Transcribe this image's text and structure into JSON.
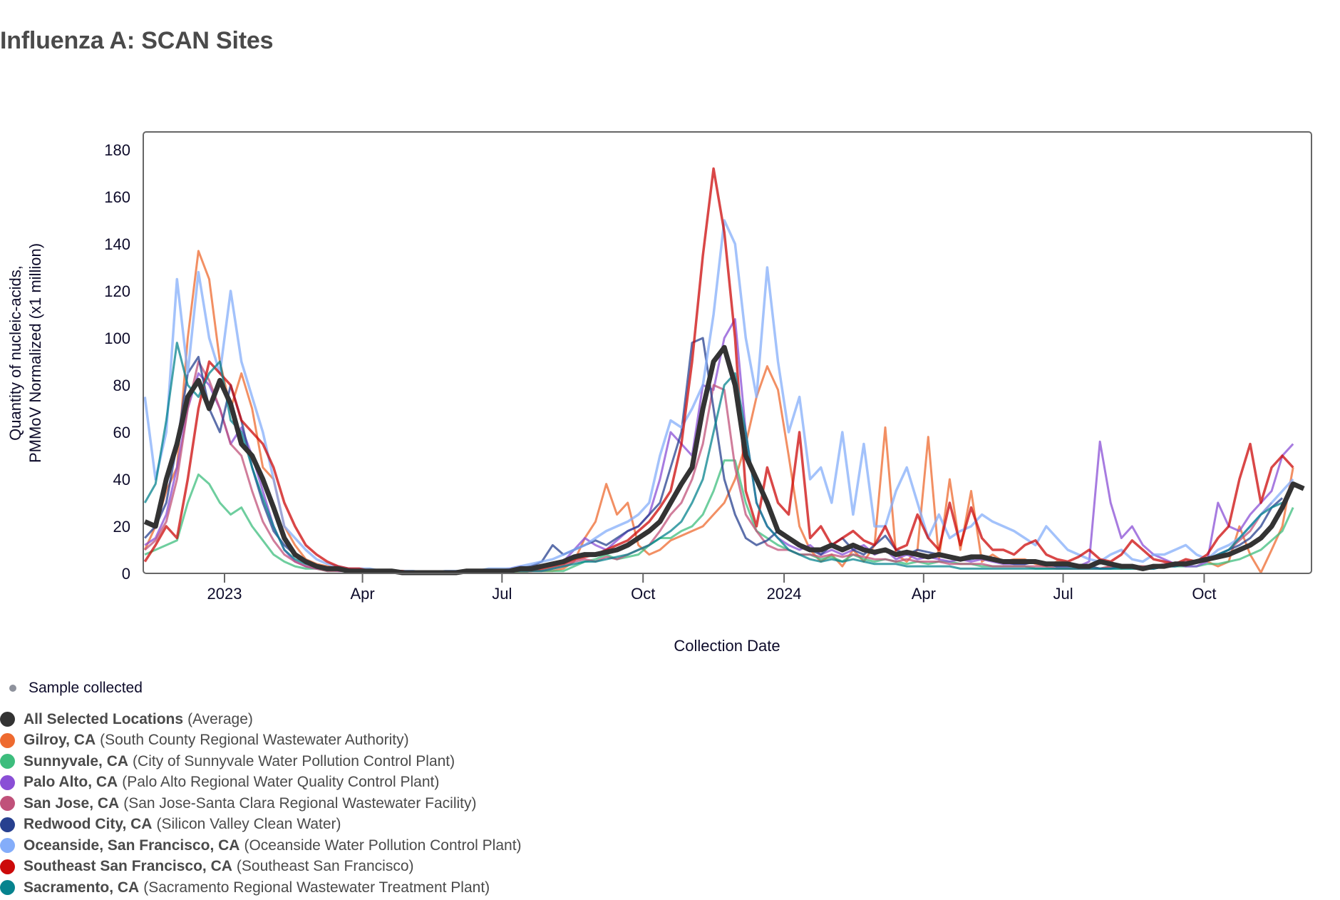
{
  "page": {
    "title": "Influenza A: SCAN Sites"
  },
  "legend": {
    "sample_label": "Sample collected",
    "sample_color": "#8e929c",
    "items": [
      {
        "name": "All Selected Locations",
        "detail": "(Average)",
        "color": "#333333"
      },
      {
        "name": "Gilroy, CA",
        "detail": "(South County Regional Wastewater Authority)",
        "color": "#ee6a2f"
      },
      {
        "name": "Sunnyvale, CA",
        "detail": "(City of Sunnyvale Water Pollution Control Plant)",
        "color": "#3dbd7d"
      },
      {
        "name": "Palo Alto, CA",
        "detail": "(Palo Alto Regional Water Quality Control Plant)",
        "color": "#8a4fd6"
      },
      {
        "name": "San Jose, CA",
        "detail": "(San Jose-Santa Clara Regional Wastewater Facility)",
        "color": "#c0517a"
      },
      {
        "name": "Redwood City, CA",
        "detail": "(Silicon Valley Clean Water)",
        "color": "#27408f"
      },
      {
        "name": "Oceanside, San Francisco, CA",
        "detail": "(Oceanside Water Pollution Control Plant)",
        "color": "#84adfa"
      },
      {
        "name": "Southeast San Francisco, CA",
        "detail": "(Southeast San Francisco)",
        "color": "#cc0a0a"
      },
      {
        "name": "Sacramento, CA",
        "detail": "(Sacramento Regional Wastewater Treatment Plant)",
        "color": "#06838e"
      }
    ]
  },
  "chart_data": {
    "type": "line",
    "title": "Influenza A: SCAN Sites",
    "xlabel": "Collection Date",
    "ylabel_lines": [
      "Quantity of nucleic-acids,",
      "PMMoV Normalized (x1 million)"
    ],
    "ylim": [
      0,
      190
    ],
    "yticks": [
      0,
      20,
      40,
      60,
      80,
      100,
      120,
      140,
      160,
      180
    ],
    "xlim": [
      "2022-11-09",
      "2024-12-10"
    ],
    "xticks": [
      {
        "date": "2023-01-01",
        "label": "2023"
      },
      {
        "date": "2023-04-01",
        "label": "Apr"
      },
      {
        "date": "2023-07-01",
        "label": "Jul"
      },
      {
        "date": "2023-10-01",
        "label": "Oct"
      },
      {
        "date": "2024-01-01",
        "label": "2024"
      },
      {
        "date": "2024-04-01",
        "label": "Apr"
      },
      {
        "date": "2024-07-01",
        "label": "Jul"
      },
      {
        "date": "2024-10-01",
        "label": "Oct"
      }
    ],
    "grid": false,
    "legend_position": "bottom-left",
    "x_start": "2022-11-10",
    "x_step_days": 7,
    "series": [
      {
        "name": "Gilroy, CA",
        "color": "#ee6a2f",
        "width": 3,
        "values": [
          10,
          20,
          35,
          45,
          100,
          137,
          125,
          90,
          70,
          85,
          70,
          45,
          40,
          20,
          12,
          6,
          4,
          3,
          2,
          2,
          1,
          1,
          1,
          1,
          1,
          0,
          0,
          0,
          0,
          0,
          0,
          0,
          0,
          0,
          0,
          1,
          1,
          1,
          1,
          2,
          5,
          15,
          22,
          38,
          25,
          30,
          12,
          8,
          10,
          14,
          16,
          18,
          20,
          25,
          30,
          40,
          55,
          75,
          88,
          78,
          50,
          20,
          10,
          5,
          8,
          3,
          10,
          5,
          12,
          62,
          8,
          5,
          10,
          58,
          6,
          40,
          10,
          35,
          5,
          8,
          5,
          6,
          6,
          4,
          3,
          5,
          4,
          3,
          3,
          2,
          3,
          2,
          3,
          3,
          2,
          3,
          4,
          3,
          5,
          5,
          3,
          5,
          20,
          8,
          0,
          10,
          20,
          45
        ]
      },
      {
        "name": "Sunnyvale, CA",
        "color": "#3dbd7d",
        "width": 3,
        "values": [
          8,
          10,
          12,
          14,
          30,
          42,
          38,
          30,
          25,
          28,
          20,
          14,
          8,
          5,
          3,
          2,
          2,
          1,
          1,
          1,
          1,
          1,
          0,
          0,
          0,
          0,
          0,
          0,
          0,
          0,
          0,
          0,
          0,
          0,
          0,
          0,
          1,
          1,
          1,
          1,
          3,
          5,
          6,
          8,
          6,
          7,
          8,
          12,
          15,
          15,
          18,
          20,
          25,
          35,
          48,
          48,
          30,
          18,
          15,
          12,
          10,
          8,
          8,
          6,
          7,
          5,
          8,
          6,
          5,
          6,
          5,
          4,
          5,
          4,
          5,
          5,
          4,
          4,
          3,
          3,
          3,
          3,
          3,
          2,
          2,
          2,
          2,
          2,
          2,
          2,
          2,
          2,
          2,
          2,
          2,
          3,
          3,
          3,
          3,
          4,
          4,
          5,
          6,
          8,
          10,
          14,
          18,
          28
        ]
      },
      {
        "name": "Palo Alto, CA",
        "color": "#8a4fd6",
        "width": 3,
        "values": [
          12,
          15,
          25,
          45,
          70,
          85,
          80,
          70,
          55,
          62,
          50,
          35,
          20,
          10,
          5,
          3,
          2,
          2,
          1,
          1,
          1,
          1,
          1,
          1,
          0,
          0,
          0,
          0,
          0,
          0,
          1,
          1,
          1,
          1,
          2,
          3,
          2,
          3,
          4,
          5,
          10,
          15,
          12,
          10,
          14,
          18,
          20,
          25,
          40,
          60,
          55,
          50,
          80,
          78,
          100,
          108,
          60,
          30,
          20,
          15,
          12,
          10,
          12,
          8,
          10,
          8,
          10,
          12,
          8,
          10,
          6,
          8,
          6,
          7,
          6,
          5,
          6,
          5,
          6,
          5,
          4,
          4,
          4,
          5,
          4,
          3,
          3,
          3,
          5,
          56,
          30,
          15,
          20,
          12,
          8,
          6,
          4,
          3,
          3,
          5,
          30,
          20,
          18,
          25,
          30,
          35,
          50,
          55
        ]
      },
      {
        "name": "San Jose, CA",
        "color": "#c0517a",
        "width": 3,
        "values": [
          10,
          14,
          22,
          40,
          70,
          90,
          82,
          70,
          55,
          50,
          35,
          22,
          14,
          8,
          5,
          3,
          2,
          1,
          1,
          1,
          1,
          1,
          0,
          0,
          0,
          0,
          0,
          0,
          0,
          0,
          0,
          0,
          0,
          1,
          1,
          1,
          1,
          1,
          2,
          3,
          5,
          6,
          5,
          7,
          6,
          8,
          10,
          12,
          18,
          25,
          30,
          40,
          55,
          80,
          78,
          45,
          25,
          18,
          12,
          10,
          10,
          8,
          8,
          7,
          8,
          7,
          8,
          7,
          6,
          6,
          5,
          6,
          5,
          5,
          5,
          4,
          4,
          4,
          4,
          3,
          3,
          3,
          3,
          3,
          3,
          2,
          2,
          2,
          2,
          2,
          3,
          3,
          3,
          3,
          3,
          4,
          4,
          5,
          5,
          6,
          8,
          10,
          14,
          18,
          25,
          30
        ]
      },
      {
        "name": "Redwood City, CA",
        "color": "#27408f",
        "width": 3,
        "values": [
          15,
          20,
          30,
          55,
          85,
          92,
          70,
          60,
          80,
          65,
          45,
          30,
          18,
          12,
          8,
          5,
          3,
          2,
          2,
          2,
          1,
          1,
          1,
          1,
          0,
          0,
          0,
          0,
          0,
          0,
          0,
          0,
          0,
          0,
          1,
          2,
          3,
          5,
          12,
          8,
          10,
          12,
          14,
          12,
          15,
          18,
          20,
          25,
          30,
          45,
          60,
          98,
          100,
          70,
          40,
          25,
          15,
          12,
          14,
          18,
          15,
          12,
          10,
          8,
          12,
          15,
          10,
          8,
          12,
          16,
          10,
          8,
          10,
          9,
          8,
          7,
          6,
          6,
          7,
          6,
          5,
          4,
          4,
          5,
          4,
          3,
          3,
          3,
          3,
          2,
          2,
          3,
          3,
          2,
          2,
          3,
          3,
          4,
          5,
          6,
          8,
          10,
          12,
          15,
          20,
          28,
          32
        ]
      },
      {
        "name": "Oceanside, San Francisco, CA",
        "color": "#84adfa",
        "width": 3.5,
        "values": [
          75,
          40,
          60,
          125,
          85,
          128,
          100,
          85,
          120,
          90,
          75,
          60,
          40,
          20,
          15,
          10,
          6,
          4,
          3,
          2,
          2,
          2,
          1,
          1,
          1,
          1,
          0,
          0,
          1,
          1,
          1,
          1,
          2,
          2,
          2,
          3,
          4,
          5,
          6,
          8,
          10,
          12,
          15,
          18,
          20,
          22,
          25,
          30,
          50,
          65,
          62,
          70,
          80,
          110,
          150,
          140,
          100,
          75,
          130,
          90,
          60,
          75,
          40,
          45,
          30,
          60,
          25,
          55,
          20,
          20,
          35,
          45,
          30,
          15,
          25,
          15,
          18,
          20,
          25,
          22,
          20,
          18,
          15,
          12,
          20,
          15,
          10,
          8,
          6,
          5,
          8,
          10,
          6,
          5,
          8,
          8,
          10,
          12,
          8,
          6,
          10,
          12,
          15,
          20,
          25,
          30,
          35,
          40
        ]
      },
      {
        "name": "Southeast San Francisco, CA",
        "color": "#cc0a0a",
        "width": 3.5,
        "values": [
          5,
          12,
          20,
          15,
          40,
          70,
          90,
          85,
          80,
          65,
          60,
          55,
          45,
          30,
          20,
          12,
          8,
          5,
          3,
          2,
          2,
          1,
          1,
          1,
          1,
          0,
          0,
          0,
          0,
          0,
          0,
          0,
          0,
          0,
          1,
          1,
          1,
          2,
          3,
          4,
          6,
          7,
          8,
          10,
          12,
          14,
          18,
          22,
          28,
          35,
          55,
          90,
          135,
          172,
          145,
          100,
          35,
          20,
          45,
          30,
          25,
          60,
          15,
          20,
          12,
          15,
          18,
          14,
          12,
          20,
          10,
          12,
          25,
          15,
          10,
          30,
          12,
          28,
          15,
          10,
          10,
          8,
          12,
          14,
          8,
          6,
          5,
          7,
          10,
          6,
          5,
          8,
          14,
          10,
          6,
          5,
          4,
          6,
          5,
          8,
          15,
          20,
          40,
          55,
          30,
          45,
          50,
          45
        ]
      },
      {
        "name": "Sacramento, CA",
        "color": "#06838e",
        "width": 3,
        "values": [
          30,
          38,
          65,
          98,
          80,
          75,
          85,
          90,
          65,
          60,
          45,
          32,
          20,
          10,
          6,
          4,
          3,
          2,
          2,
          1,
          1,
          1,
          1,
          1,
          0,
          0,
          0,
          0,
          0,
          0,
          0,
          0,
          0,
          1,
          1,
          1,
          1,
          1,
          2,
          3,
          4,
          5,
          5,
          6,
          7,
          8,
          10,
          12,
          15,
          18,
          22,
          30,
          40,
          60,
          80,
          85,
          60,
          30,
          20,
          15,
          10,
          8,
          6,
          5,
          6,
          5,
          6,
          5,
          4,
          4,
          4,
          3,
          3,
          3,
          3,
          3,
          2,
          2,
          2,
          2,
          2,
          2,
          2,
          2,
          2,
          2,
          2,
          2,
          2,
          2,
          2,
          2,
          2,
          2,
          2,
          3,
          3,
          4,
          5,
          6,
          8,
          10,
          15,
          20,
          25,
          28,
          30
        ]
      },
      {
        "name": "All Selected Locations",
        "color": "#333333",
        "width": 7,
        "values": [
          22,
          20,
          40,
          55,
          75,
          82,
          70,
          82,
          72,
          55,
          50,
          40,
          28,
          15,
          8,
          5,
          3,
          2,
          2,
          1,
          1,
          1,
          1,
          1,
          0,
          0,
          0,
          0,
          0,
          0,
          1,
          1,
          1,
          1,
          1,
          2,
          2,
          3,
          4,
          5,
          7,
          8,
          8,
          9,
          10,
          12,
          15,
          18,
          22,
          30,
          38,
          45,
          70,
          90,
          96,
          80,
          50,
          40,
          30,
          18,
          15,
          12,
          10,
          10,
          12,
          10,
          12,
          10,
          9,
          10,
          8,
          9,
          8,
          7,
          8,
          7,
          6,
          7,
          7,
          6,
          5,
          5,
          5,
          5,
          4,
          4,
          4,
          3,
          3,
          5,
          4,
          3,
          3,
          2,
          3,
          3,
          4,
          4,
          5,
          6,
          7,
          8,
          10,
          12,
          15,
          20,
          28,
          38,
          36
        ]
      }
    ]
  }
}
